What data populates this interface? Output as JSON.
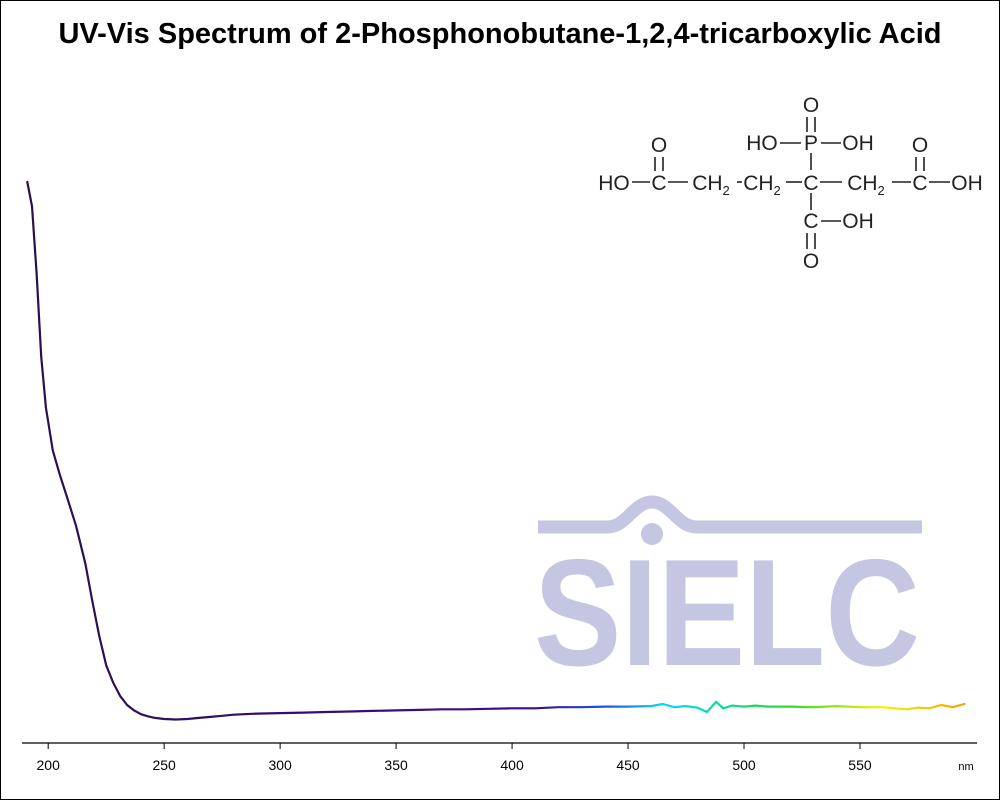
{
  "chart_data": {
    "type": "line",
    "title": "UV-Vis Spectrum of 2-Phosphonobutane-1,2,4-tricarboxylic Acid",
    "xlabel": "",
    "ylabel": "",
    "x_unit": "nm",
    "xlim": [
      190,
      597
    ],
    "ylim": [
      0,
      1
    ],
    "x_ticks": [
      200,
      250,
      300,
      350,
      400,
      450,
      500,
      550
    ],
    "y_axis_visible": false,
    "grid": false,
    "legend": "none",
    "line_gradient": [
      {
        "x": 190,
        "color": "#2a0f4e"
      },
      {
        "x": 410,
        "color": "#3a0f8a"
      },
      {
        "x": 440,
        "color": "#1a55e8"
      },
      {
        "x": 465,
        "color": "#00d8ff"
      },
      {
        "x": 495,
        "color": "#10d890"
      },
      {
        "x": 520,
        "color": "#30dc20"
      },
      {
        "x": 560,
        "color": "#f4f400"
      },
      {
        "x": 597,
        "color": "#f0a000"
      }
    ],
    "series": [
      {
        "x": [
          191,
          193,
          195,
          197,
          199,
          202,
          205,
          208,
          212,
          216,
          219,
          222,
          225,
          228,
          231,
          234,
          237,
          240,
          243,
          246,
          250,
          255,
          260,
          265,
          270,
          275,
          280,
          290,
          300,
          310,
          320,
          330,
          340,
          350,
          360,
          370,
          380,
          390,
          400,
          410,
          420,
          430,
          440,
          450,
          460,
          465,
          470,
          475,
          480,
          484,
          488,
          491,
          495,
          500,
          505,
          510,
          520,
          530,
          540,
          550,
          560,
          565,
          570,
          575,
          580,
          585,
          590,
          595
        ],
        "y": [
          1.0,
          0.955,
          0.83,
          0.675,
          0.58,
          0.5,
          0.455,
          0.415,
          0.36,
          0.29,
          0.22,
          0.155,
          0.1,
          0.068,
          0.043,
          0.026,
          0.016,
          0.009,
          0.005,
          0.002,
          0.0,
          -0.001,
          0.0,
          0.002,
          0.004,
          0.006,
          0.008,
          0.01,
          0.011,
          0.012,
          0.013,
          0.014,
          0.015,
          0.016,
          0.017,
          0.018,
          0.018,
          0.019,
          0.02,
          0.02,
          0.022,
          0.022,
          0.023,
          0.023,
          0.024,
          0.028,
          0.022,
          0.024,
          0.021,
          0.013,
          0.032,
          0.02,
          0.025,
          0.023,
          0.025,
          0.023,
          0.023,
          0.022,
          0.024,
          0.022,
          0.022,
          0.02,
          0.018,
          0.021,
          0.02,
          0.026,
          0.022,
          0.028
        ]
      }
    ]
  },
  "structure": {
    "row_o_top": "O",
    "row1_left": "HO",
    "row1_p": "P",
    "row1_right": "OH",
    "row2_o_left": "O",
    "row2_o_right": "O",
    "row3_ho": "HO",
    "row3_c1": "C",
    "row3_ch2_a": "CH",
    "row3_ch2_b": "CH",
    "row3_c_center": "C",
    "row3_ch2_c": "CH",
    "row3_c2": "C",
    "row3_oh": "OH",
    "sub_2": "2",
    "row4_c": "C",
    "row4_oh": "OH",
    "row5_o": "O"
  },
  "watermark": {
    "text": "SIELC",
    "color": "#c5c7e2"
  }
}
